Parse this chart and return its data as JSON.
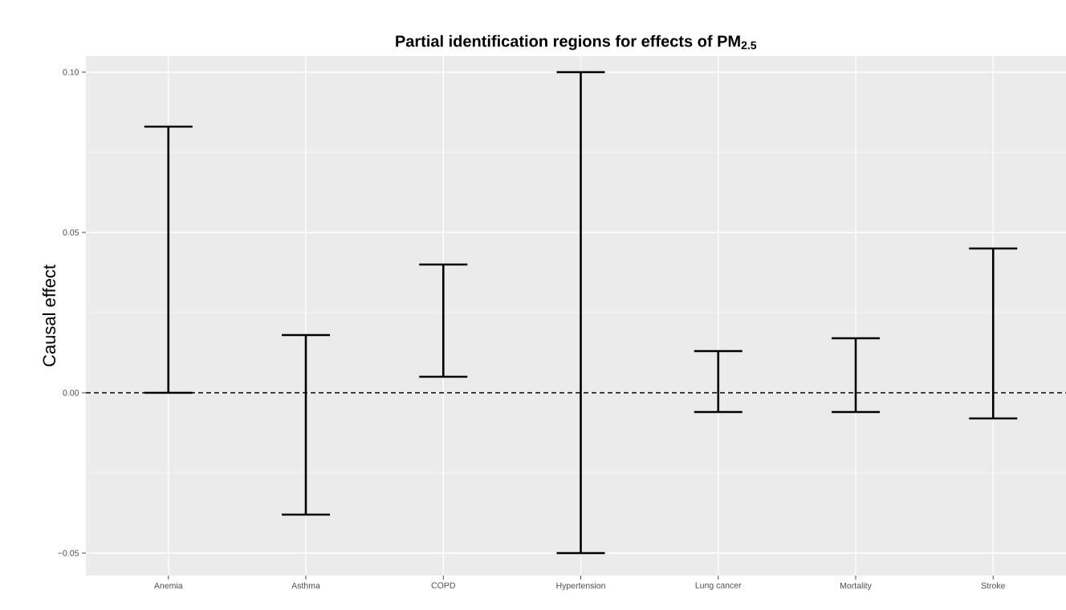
{
  "chart_data": {
    "type": "bar",
    "title": "Partial identification regions for effects of PM$_{2.5}$",
    "ylabel": "Causal effect",
    "categories": [
      "Anemia",
      "Asthma",
      "COPD",
      "Hypertension",
      "Lung cancer",
      "Mortality",
      "Stroke"
    ],
    "base": [
      0.0,
      -0.038,
      0.005,
      -0.05,
      -0.006,
      -0.006,
      -0.008
    ],
    "values": [
      0.083,
      0.056,
      0.035,
      0.15,
      0.019,
      0.023,
      0.053
    ],
    "color": "#000000",
    "ylim": [
      -0.057,
      0.105
    ],
    "yticks": [
      {
        "value": -0.05,
        "label": "−0.05"
      },
      {
        "value": 0.0,
        "label": "0.00"
      },
      {
        "value": 0.05,
        "label": "0.05"
      },
      {
        "value": 0.1,
        "label": "0.10"
      }
    ],
    "grid": true,
    "ref_lines": [
      {
        "axis": "y",
        "value": 0.0,
        "color": "#000000",
        "line_style": "dashed"
      }
    ]
  }
}
